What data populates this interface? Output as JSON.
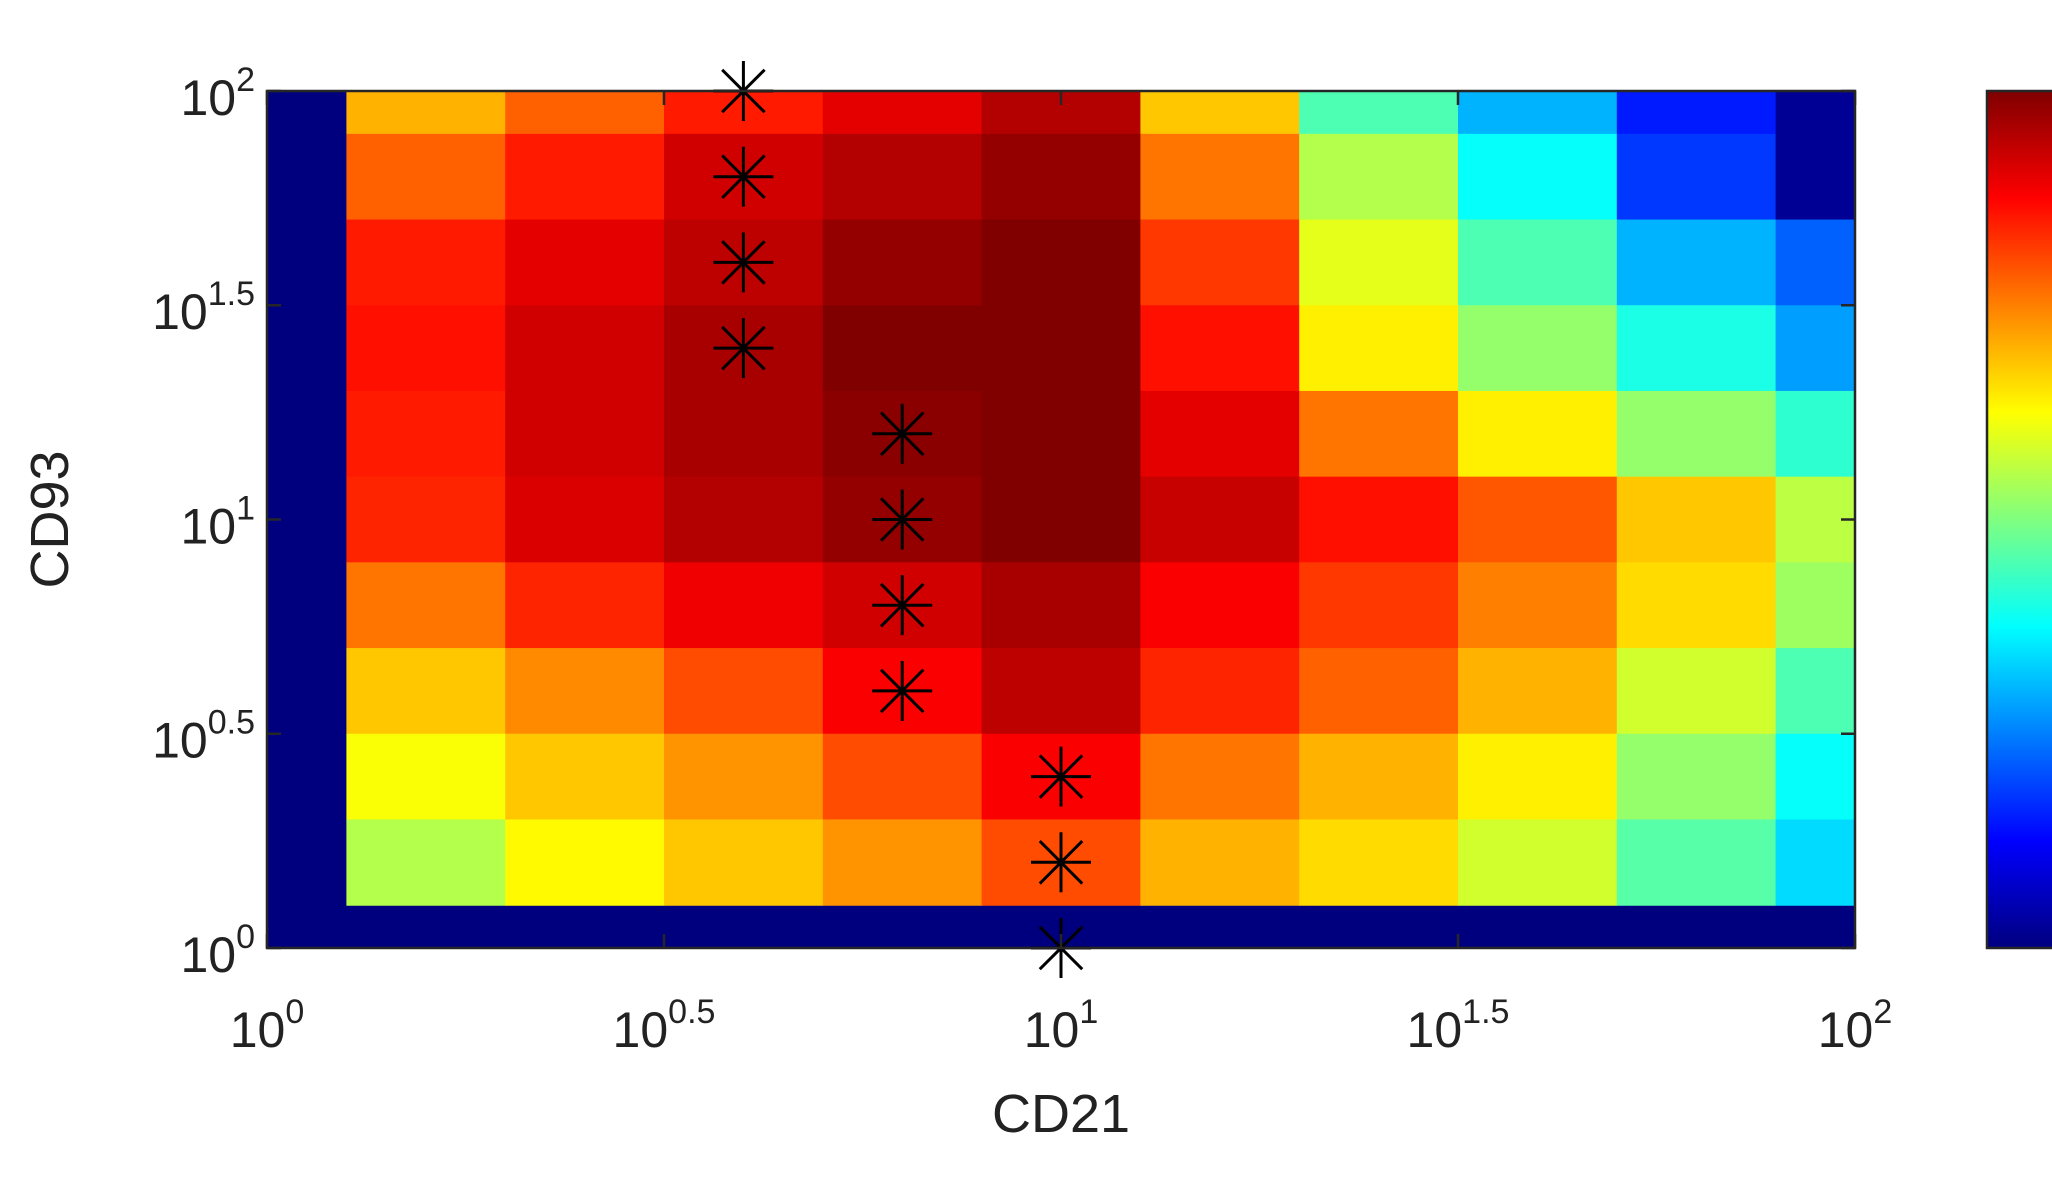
{
  "chart_data": {
    "type": "heatmap",
    "xlabel": "CD21",
    "ylabel": "CD93",
    "x_scale": "log",
    "y_scale": "log",
    "xlim": [
      1,
      100
    ],
    "ylim": [
      1,
      100
    ],
    "x_ticks": [
      {
        "base": "10",
        "exp": "0",
        "value": 1
      },
      {
        "base": "10",
        "exp": "0.5",
        "value": 3.1623
      },
      {
        "base": "10",
        "exp": "1",
        "value": 10
      },
      {
        "base": "10",
        "exp": "1.5",
        "value": 31.623
      },
      {
        "base": "10",
        "exp": "2",
        "value": 100
      }
    ],
    "y_ticks": [
      {
        "base": "10",
        "exp": "0",
        "value": 1
      },
      {
        "base": "10",
        "exp": "0.5",
        "value": 3.1623
      },
      {
        "base": "10",
        "exp": "1",
        "value": 10
      },
      {
        "base": "10",
        "exp": "1.5",
        "value": 31.623
      },
      {
        "base": "10",
        "exp": "2",
        "value": 100
      }
    ],
    "colormap": "jet",
    "colorbar": "right",
    "background_color": "#00007f",
    "cell_x_edges_log10": [
      0.1,
      0.3,
      0.5,
      0.7,
      0.9,
      1.1,
      1.3,
      1.5,
      1.7,
      1.9,
      2.0
    ],
    "cell_y_edges_log10": [
      0.1,
      0.3,
      0.5,
      0.7,
      0.9,
      1.1,
      1.3,
      1.5,
      1.7,
      1.9,
      2.0
    ],
    "values_rows_top_to_bottom": [
      [
        0.7,
        0.78,
        0.85,
        0.9,
        0.95,
        0.68,
        0.45,
        0.3,
        0.15,
        0.02
      ],
      [
        0.78,
        0.85,
        0.92,
        0.95,
        0.98,
        0.76,
        0.55,
        0.38,
        0.18,
        0.02
      ],
      [
        0.85,
        0.9,
        0.94,
        0.98,
        1.0,
        0.82,
        0.6,
        0.45,
        0.3,
        0.22
      ],
      [
        0.86,
        0.92,
        0.96,
        1.0,
        1.0,
        0.86,
        0.64,
        0.52,
        0.4,
        0.28
      ],
      [
        0.85,
        0.92,
        0.96,
        0.99,
        1.0,
        0.9,
        0.76,
        0.64,
        0.52,
        0.42
      ],
      [
        0.84,
        0.91,
        0.95,
        0.98,
        1.0,
        0.93,
        0.86,
        0.79,
        0.68,
        0.56
      ],
      [
        0.76,
        0.84,
        0.89,
        0.92,
        0.96,
        0.88,
        0.82,
        0.75,
        0.66,
        0.53
      ],
      [
        0.68,
        0.74,
        0.8,
        0.88,
        0.94,
        0.84,
        0.78,
        0.7,
        0.58,
        0.45
      ],
      [
        0.62,
        0.68,
        0.73,
        0.8,
        0.88,
        0.76,
        0.7,
        0.64,
        0.52,
        0.38
      ],
      [
        0.55,
        0.63,
        0.68,
        0.73,
        0.8,
        0.7,
        0.66,
        0.58,
        0.46,
        0.34
      ]
    ],
    "markers": {
      "symbol": "asterisk",
      "color": "#000000",
      "points": [
        {
          "x": 3.9811,
          "y": 100
        },
        {
          "x": 3.9811,
          "y": 63.096
        },
        {
          "x": 3.9811,
          "y": 39.811
        },
        {
          "x": 3.9811,
          "y": 25.119
        },
        {
          "x": 6.3096,
          "y": 15.849
        },
        {
          "x": 6.3096,
          "y": 10
        },
        {
          "x": 6.3096,
          "y": 6.3096
        },
        {
          "x": 6.3096,
          "y": 3.9811
        },
        {
          "x": 10,
          "y": 2.5119
        },
        {
          "x": 10,
          "y": 1.5849
        },
        {
          "x": 10,
          "y": 1
        }
      ]
    }
  }
}
